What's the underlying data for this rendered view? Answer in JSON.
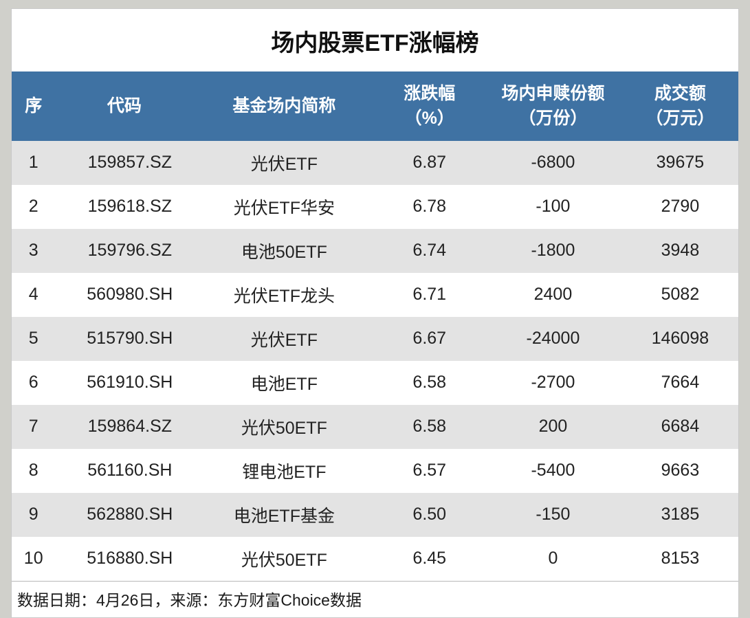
{
  "table": {
    "title": "场内股票ETF涨幅榜",
    "title_fontsize": 34,
    "header_bg": "#3f72a3",
    "header_fg": "#ffffff",
    "row_odd_bg": "#e3e3e3",
    "row_even_bg": "#ffffff",
    "text_color": "#222222",
    "body_fontsize": 25,
    "header_fontsize": 25,
    "footnote_fontsize": 23,
    "columns": [
      {
        "key": "idx",
        "label": "序",
        "width_pct": 6
      },
      {
        "key": "code",
        "label": "代码",
        "width_pct": 19
      },
      {
        "key": "name",
        "label": "基金场内简称",
        "width_pct": 25
      },
      {
        "key": "chg",
        "label": "涨跌幅\n（%）",
        "width_pct": 15
      },
      {
        "key": "share",
        "label": "场内申赎份额\n（万份）",
        "width_pct": 19
      },
      {
        "key": "amount",
        "label": "成交额\n（万元）",
        "width_pct": 16
      }
    ],
    "rows": [
      {
        "idx": "1",
        "code": "159857.SZ",
        "name": "光伏ETF",
        "chg": "6.87",
        "share": "-6800",
        "amount": "39675"
      },
      {
        "idx": "2",
        "code": "159618.SZ",
        "name": "光伏ETF华安",
        "chg": "6.78",
        "share": "-100",
        "amount": "2790"
      },
      {
        "idx": "3",
        "code": "159796.SZ",
        "name": "电池50ETF",
        "chg": "6.74",
        "share": "-1800",
        "amount": "3948"
      },
      {
        "idx": "4",
        "code": "560980.SH",
        "name": "光伏ETF龙头",
        "chg": "6.71",
        "share": "2400",
        "amount": "5082"
      },
      {
        "idx": "5",
        "code": "515790.SH",
        "name": "光伏ETF",
        "chg": "6.67",
        "share": "-24000",
        "amount": "146098"
      },
      {
        "idx": "6",
        "code": "561910.SH",
        "name": "电池ETF",
        "chg": "6.58",
        "share": "-2700",
        "amount": "7664"
      },
      {
        "idx": "7",
        "code": "159864.SZ",
        "name": "光伏50ETF",
        "chg": "6.58",
        "share": "200",
        "amount": "6684"
      },
      {
        "idx": "8",
        "code": "561160.SH",
        "name": "锂电池ETF",
        "chg": "6.57",
        "share": "-5400",
        "amount": "9663"
      },
      {
        "idx": "9",
        "code": "562880.SH",
        "name": "电池ETF基金",
        "chg": "6.50",
        "share": "-150",
        "amount": "3185"
      },
      {
        "idx": "10",
        "code": "516880.SH",
        "name": "光伏50ETF",
        "chg": "6.45",
        "share": "0",
        "amount": "8153"
      }
    ],
    "footnote": "数据日期：4月26日，来源：东方财富Choice数据"
  }
}
